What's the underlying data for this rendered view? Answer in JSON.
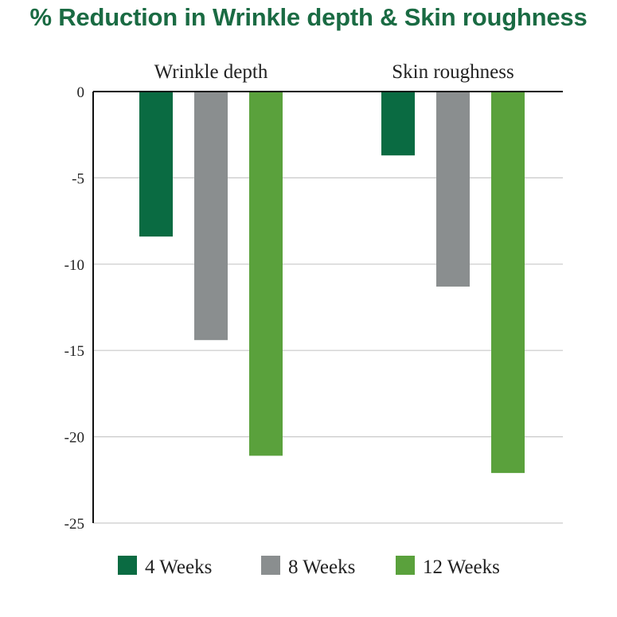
{
  "chart_data": {
    "type": "bar",
    "title": "% Reduction in Wrinkle depth & Skin roughness",
    "categories": [
      "Wrinkle depth",
      "Skin roughness"
    ],
    "series": [
      {
        "name": "4 Weeks",
        "color": "#0a6b42",
        "values": [
          -8.4,
          -3.7
        ]
      },
      {
        "name": "8 Weeks",
        "color": "#8a8e8f",
        "values": [
          -14.4,
          -11.3
        ]
      },
      {
        "name": "12 Weeks",
        "color": "#5aa13c",
        "values": [
          -21.1,
          -22.1
        ]
      }
    ],
    "ylim": [
      -25,
      0
    ],
    "yticks": [
      0,
      -5,
      -10,
      -15,
      -20,
      -25
    ],
    "xlabel": "",
    "ylabel": "",
    "grid": true,
    "legend_position": "bottom"
  }
}
